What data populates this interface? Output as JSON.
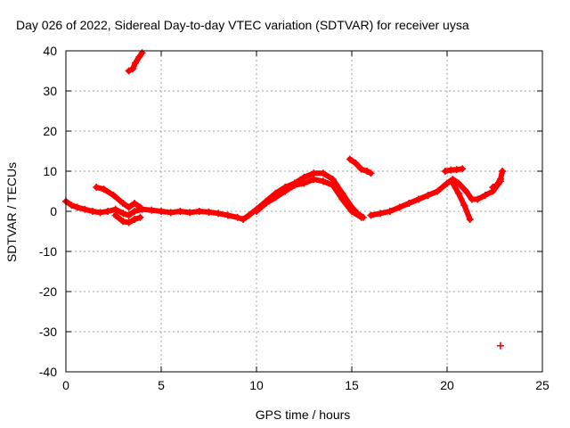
{
  "chart_data": {
    "type": "scatter",
    "title": "Day 026 of 2022, Sidereal Day-to-day VTEC variation (SDTVAR) for receiver uysa",
    "xlabel": "GPS time / hours",
    "ylabel": "SDTVAR / TECUs",
    "xlim": [
      0,
      25
    ],
    "ylim": [
      -40,
      40
    ],
    "xticks": [
      0,
      5,
      10,
      15,
      20,
      25
    ],
    "yticks": [
      -40,
      -30,
      -20,
      -10,
      0,
      10,
      20,
      30,
      40
    ],
    "x_tick_labels": [
      "0",
      "5",
      "10",
      "15",
      "20",
      "25"
    ],
    "y_tick_labels": [
      "-40",
      "-30",
      "-20",
      "-10",
      "0",
      "10",
      "20",
      "30",
      "40"
    ],
    "grid": true,
    "color": "#ff0000",
    "series": [
      {
        "name": "arc-main-1",
        "points": [
          [
            0,
            2.5
          ],
          [
            0.3,
            1.5
          ],
          [
            0.6,
            1
          ],
          [
            1,
            0.5
          ],
          [
            1.4,
            0
          ],
          [
            1.8,
            -0.3
          ],
          [
            2.2,
            0
          ],
          [
            2.6,
            0.5
          ],
          [
            3,
            -0.5
          ],
          [
            3.3,
            -1
          ],
          [
            3.6,
            0
          ],
          [
            4,
            0.5
          ],
          [
            4.5,
            0.3
          ],
          [
            5,
            0
          ],
          [
            5.5,
            -0.3
          ],
          [
            6,
            0
          ],
          [
            6.5,
            -0.3
          ],
          [
            7,
            0
          ],
          [
            7.5,
            -0.2
          ],
          [
            8,
            -0.5
          ],
          [
            8.5,
            -1
          ],
          [
            9,
            -1.5
          ],
          [
            9.3,
            -2
          ],
          [
            9.6,
            -1
          ],
          [
            10,
            0.5
          ],
          [
            10.5,
            2.5
          ],
          [
            11,
            4.5
          ],
          [
            11.5,
            6
          ],
          [
            12,
            7
          ],
          [
            12.5,
            8.5
          ],
          [
            13,
            9.5
          ],
          [
            13.5,
            9.5
          ],
          [
            14,
            8
          ],
          [
            14.5,
            4.5
          ],
          [
            15,
            1
          ],
          [
            15.3,
            -0.5
          ],
          [
            15.6,
            -1.5
          ]
        ]
      },
      {
        "name": "arc-main-1-spread",
        "points": [
          [
            10,
            0
          ],
          [
            10.5,
            2
          ],
          [
            11,
            3.5
          ],
          [
            11.5,
            5
          ],
          [
            12,
            6.5
          ],
          [
            12.5,
            7
          ],
          [
            13,
            8
          ],
          [
            13.5,
            7.5
          ],
          [
            14,
            6.5
          ],
          [
            14.5,
            3
          ],
          [
            15,
            0
          ],
          [
            15.5,
            -1.5
          ]
        ]
      },
      {
        "name": "arc-early-hump",
        "points": [
          [
            1.6,
            6
          ],
          [
            2,
            5.5
          ],
          [
            2.5,
            4
          ],
          [
            3,
            2
          ],
          [
            3.3,
            1
          ],
          [
            3.6,
            2
          ],
          [
            3.9,
            1
          ]
        ]
      },
      {
        "name": "arc-early-dip",
        "points": [
          [
            2.6,
            -1
          ],
          [
            3,
            -2.5
          ],
          [
            3.3,
            -2.8
          ],
          [
            3.6,
            -2
          ],
          [
            3.9,
            -1.5
          ]
        ]
      },
      {
        "name": "arc-high-start",
        "points": [
          [
            3.3,
            35
          ],
          [
            3.5,
            35.5
          ],
          [
            3.65,
            37
          ],
          [
            3.85,
            38.5
          ],
          [
            4,
            39.5
          ]
        ]
      },
      {
        "name": "arc-15h",
        "points": [
          [
            14.9,
            13
          ],
          [
            15.2,
            12
          ],
          [
            15.5,
            10.5
          ],
          [
            15.8,
            10
          ],
          [
            16,
            9.5
          ]
        ]
      },
      {
        "name": "arc-main-2",
        "points": [
          [
            16,
            -1
          ],
          [
            16.5,
            -0.5
          ],
          [
            17,
            0
          ],
          [
            17.5,
            1
          ],
          [
            18,
            2
          ],
          [
            18.5,
            3
          ],
          [
            19,
            4
          ],
          [
            19.5,
            5
          ],
          [
            20,
            7
          ],
          [
            20.3,
            8
          ],
          [
            20.6,
            7
          ],
          [
            21,
            5
          ],
          [
            21.3,
            3
          ],
          [
            21.6,
            3
          ],
          [
            22,
            4
          ],
          [
            22.4,
            5
          ],
          [
            22.8,
            7.5
          ]
        ]
      },
      {
        "name": "arc-main-2-drop",
        "points": [
          [
            20.3,
            7
          ],
          [
            20.6,
            4.5
          ],
          [
            20.9,
            1.5
          ],
          [
            21.2,
            -2
          ]
        ]
      },
      {
        "name": "arc-20h-short",
        "points": [
          [
            19.9,
            10
          ],
          [
            20.2,
            10.3
          ],
          [
            20.5,
            10.4
          ],
          [
            20.8,
            10.6
          ]
        ]
      },
      {
        "name": "arc-22h-end",
        "points": [
          [
            22.4,
            6
          ],
          [
            22.6,
            6.5
          ],
          [
            22.8,
            8
          ],
          [
            22.9,
            10
          ]
        ]
      },
      {
        "name": "point-outlier",
        "points": [
          [
            22.8,
            -33.5
          ]
        ]
      }
    ]
  }
}
